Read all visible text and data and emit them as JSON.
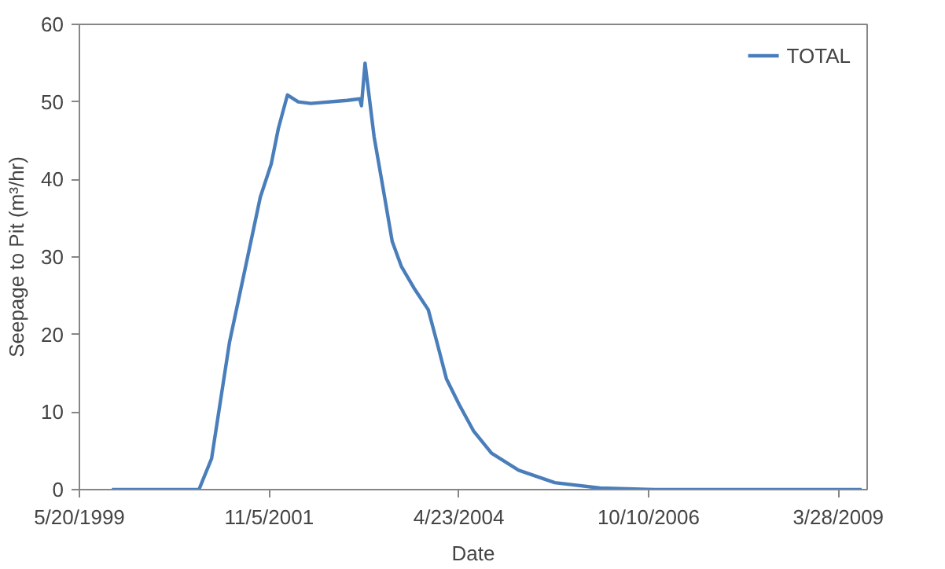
{
  "chart_data": {
    "type": "line",
    "xlabel": "Date",
    "ylabel": "Seepage to Pit (m³/hr)",
    "x": [
      "1999-10-21",
      "2000-12-07",
      "2001-02-05",
      "2001-05-01",
      "2001-07-26",
      "2001-09-24",
      "2001-11-15",
      "2001-12-19",
      "2002-01-31",
      "2002-03-23",
      "2002-05-22",
      "2002-11-10",
      "2003-01-09",
      "2003-01-17",
      "2003-02-03",
      "2003-03-18",
      "2003-04-30",
      "2003-06-12",
      "2003-07-25",
      "2003-09-23",
      "2003-11-30",
      "2004-01-12",
      "2004-02-24",
      "2004-04-24",
      "2004-07-01",
      "2004-09-25",
      "2005-02-01",
      "2005-07-22",
      "2006-02-22",
      "2006-11-06",
      "2009-07-17"
    ],
    "series": [
      {
        "name": "TOTAL",
        "color": "#4a7ebb",
        "values": [
          0,
          0,
          4,
          19,
          30,
          37.7,
          42,
          46.6,
          50.9,
          50,
          49.8,
          50.2,
          50.4,
          49.5,
          55,
          45.5,
          38.8,
          32,
          28.8,
          26,
          23.2,
          18.8,
          14.3,
          11,
          7.6,
          4.7,
          2.5,
          0.9,
          0.2,
          0,
          0
        ]
      }
    ],
    "xlim": [
      "1999-05-20",
      "2009-08-12"
    ],
    "xticks": [
      {
        "value": "1999-05-20",
        "label": "5/20/1999"
      },
      {
        "value": "2001-11-05",
        "label": "11/5/2001"
      },
      {
        "value": "2004-04-23",
        "label": "4/23/2004"
      },
      {
        "value": "2006-10-10",
        "label": "10/10/2006"
      },
      {
        "value": "2009-03-28",
        "label": "3/28/2009"
      }
    ],
    "ylim": [
      0,
      60
    ],
    "yticks": [
      0,
      10,
      20,
      30,
      40,
      50,
      60
    ],
    "grid": false,
    "legend": "top right",
    "marker": "none",
    "line_style": "solid"
  }
}
